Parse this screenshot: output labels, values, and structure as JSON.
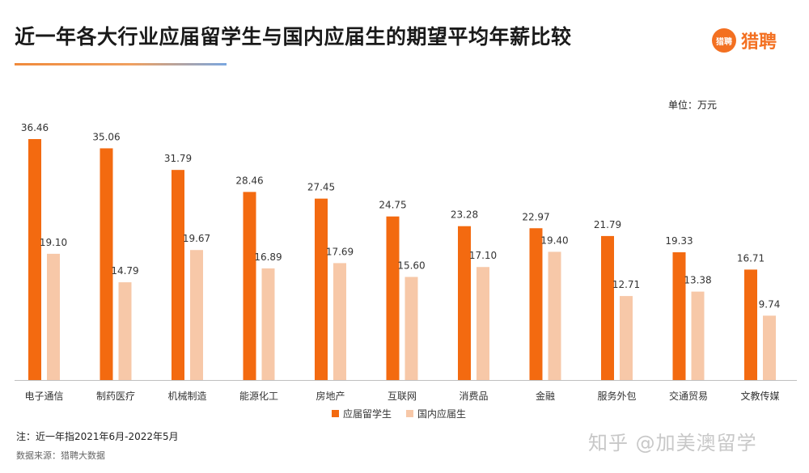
{
  "header": {
    "title": "近一年各大行业应届留学生与国内应届生的期望平均年薪比较",
    "logo_badge": "猎聘",
    "logo_text": "猎聘"
  },
  "unit_label": "单位：万元",
  "note": "注：近一年指2021年6月-2022年5月",
  "source": "数据来源：猎聘大数据",
  "watermark": "知乎 @加美澳留学",
  "colors": {
    "overseas": "#f36a10",
    "domestic": "#f7c8a8",
    "accent": "#f37021"
  },
  "chart_data": {
    "type": "bar",
    "categories": [
      "电子通信",
      "制药医疗",
      "机械制造",
      "能源化工",
      "房地产",
      "互联网",
      "消费品",
      "金融",
      "服务外包",
      "交通贸易",
      "文教传媒"
    ],
    "series": [
      {
        "name": "应届留学生",
        "values": [
          36.46,
          35.06,
          31.79,
          28.46,
          27.45,
          24.75,
          23.28,
          22.97,
          21.79,
          19.33,
          16.71
        ]
      },
      {
        "name": "国内应届生",
        "values": [
          19.1,
          14.79,
          19.67,
          16.89,
          17.69,
          15.6,
          17.1,
          19.4,
          12.71,
          13.38,
          9.74
        ]
      }
    ],
    "ylim": [
      0,
      36.46
    ],
    "grid": false,
    "legend_position": "bottom"
  }
}
